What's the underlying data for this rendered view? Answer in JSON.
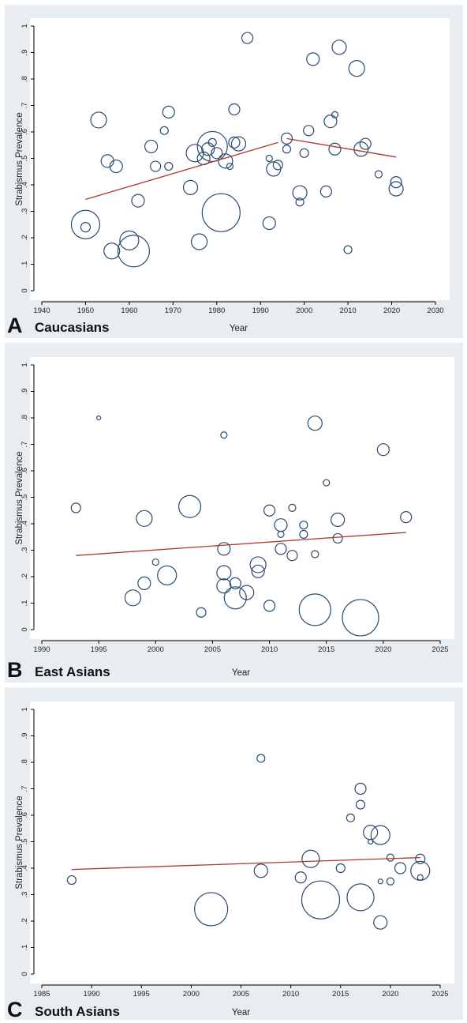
{
  "chart_data": [
    {
      "type": "scatter",
      "panel_letter": "A",
      "group": "Caucasians",
      "xlabel": "Year",
      "ylabel": "Strabismus Prevalence",
      "xlim": [
        1940,
        2030
      ],
      "ylim": [
        0,
        1
      ],
      "x_ticks": [
        1940,
        1950,
        1960,
        1970,
        1980,
        1990,
        2000,
        2010,
        2020,
        2030
      ],
      "y_ticks": [
        "0",
        ".1",
        ".2",
        ".3",
        ".4",
        ".5",
        ".6",
        ".7",
        ".8",
        ".9",
        "1"
      ],
      "grid": false,
      "bubble_size": "study weight (relative)",
      "points": [
        {
          "x": 1950,
          "y": 0.25,
          "w": 18
        },
        {
          "x": 1950,
          "y": 0.24,
          "w": 6
        },
        {
          "x": 1953,
          "y": 0.645,
          "w": 10
        },
        {
          "x": 1955,
          "y": 0.49,
          "w": 8
        },
        {
          "x": 1956,
          "y": 0.15,
          "w": 10
        },
        {
          "x": 1957,
          "y": 0.47,
          "w": 8
        },
        {
          "x": 1960,
          "y": 0.19,
          "w": 12
        },
        {
          "x": 1961,
          "y": 0.15,
          "w": 20
        },
        {
          "x": 1962,
          "y": 0.34,
          "w": 8
        },
        {
          "x": 1965,
          "y": 0.545,
          "w": 8
        },
        {
          "x": 1966,
          "y": 0.47,
          "w": 6.5
        },
        {
          "x": 1968,
          "y": 0.605,
          "w": 5
        },
        {
          "x": 1969,
          "y": 0.675,
          "w": 7.5
        },
        {
          "x": 1969,
          "y": 0.47,
          "w": 5
        },
        {
          "x": 1974,
          "y": 0.39,
          "w": 9
        },
        {
          "x": 1975,
          "y": 0.52,
          "w": 11
        },
        {
          "x": 1976,
          "y": 0.185,
          "w": 10
        },
        {
          "x": 1977,
          "y": 0.5,
          "w": 8
        },
        {
          "x": 1978,
          "y": 0.535,
          "w": 8
        },
        {
          "x": 1979,
          "y": 0.545,
          "w": 19
        },
        {
          "x": 1979,
          "y": 0.56,
          "w": 5
        },
        {
          "x": 1980,
          "y": 0.52,
          "w": 7
        },
        {
          "x": 1981,
          "y": 0.295,
          "w": 24
        },
        {
          "x": 1982,
          "y": 0.49,
          "w": 9
        },
        {
          "x": 1983,
          "y": 0.47,
          "w": 4
        },
        {
          "x": 1984,
          "y": 0.685,
          "w": 7
        },
        {
          "x": 1984,
          "y": 0.56,
          "w": 7
        },
        {
          "x": 1985,
          "y": 0.555,
          "w": 9
        },
        {
          "x": 1987,
          "y": 0.955,
          "w": 7
        },
        {
          "x": 1992,
          "y": 0.255,
          "w": 8
        },
        {
          "x": 1992,
          "y": 0.5,
          "w": 4
        },
        {
          "x": 1993,
          "y": 0.46,
          "w": 9
        },
        {
          "x": 1994,
          "y": 0.475,
          "w": 6
        },
        {
          "x": 1996,
          "y": 0.575,
          "w": 7
        },
        {
          "x": 1996,
          "y": 0.535,
          "w": 5
        },
        {
          "x": 1999,
          "y": 0.37,
          "w": 9
        },
        {
          "x": 1999,
          "y": 0.335,
          "w": 5
        },
        {
          "x": 2000,
          "y": 0.52,
          "w": 5.5
        },
        {
          "x": 2001,
          "y": 0.605,
          "w": 6.5
        },
        {
          "x": 2002,
          "y": 0.875,
          "w": 8
        },
        {
          "x": 2005,
          "y": 0.375,
          "w": 7
        },
        {
          "x": 2006,
          "y": 0.64,
          "w": 8
        },
        {
          "x": 2007,
          "y": 0.535,
          "w": 7.5
        },
        {
          "x": 2007,
          "y": 0.665,
          "w": 4
        },
        {
          "x": 2008,
          "y": 0.92,
          "w": 9
        },
        {
          "x": 2010,
          "y": 0.155,
          "w": 5
        },
        {
          "x": 2012,
          "y": 0.84,
          "w": 10
        },
        {
          "x": 2013,
          "y": 0.535,
          "w": 9
        },
        {
          "x": 2014,
          "y": 0.555,
          "w": 7
        },
        {
          "x": 2017,
          "y": 0.44,
          "w": 4.5
        },
        {
          "x": 2021,
          "y": 0.41,
          "w": 7
        },
        {
          "x": 2021,
          "y": 0.385,
          "w": 9
        }
      ],
      "fit_lines": [
        {
          "x": [
            1950,
            1994
          ],
          "y": [
            0.345,
            0.56
          ]
        },
        {
          "x": [
            1996,
            2021
          ],
          "y": [
            0.575,
            0.505
          ]
        }
      ]
    },
    {
      "type": "scatter",
      "panel_letter": "B",
      "group": "East Asians",
      "xlabel": "Year",
      "ylabel": "Strabismus Prevalence",
      "xlim": [
        1990,
        2025
      ],
      "ylim": [
        0,
        1
      ],
      "x_ticks": [
        1990,
        1995,
        2000,
        2005,
        2010,
        2015,
        2020,
        2025
      ],
      "y_ticks": [
        "0",
        ".1",
        ".2",
        ".3",
        ".4",
        ".5",
        ".6",
        ".7",
        ".8",
        ".9",
        "1"
      ],
      "grid": false,
      "bubble_size": "study weight (relative)",
      "points": [
        {
          "x": 1993,
          "y": 0.46,
          "w": 6
        },
        {
          "x": 1995,
          "y": 0.8,
          "w": 2.5
        },
        {
          "x": 1998,
          "y": 0.12,
          "w": 10
        },
        {
          "x": 1999,
          "y": 0.42,
          "w": 10
        },
        {
          "x": 1999,
          "y": 0.175,
          "w": 8
        },
        {
          "x": 2000,
          "y": 0.255,
          "w": 4
        },
        {
          "x": 2001,
          "y": 0.205,
          "w": 12
        },
        {
          "x": 2003,
          "y": 0.465,
          "w": 14
        },
        {
          "x": 2004,
          "y": 0.065,
          "w": 6
        },
        {
          "x": 2006,
          "y": 0.735,
          "w": 4
        },
        {
          "x": 2006,
          "y": 0.305,
          "w": 8
        },
        {
          "x": 2006,
          "y": 0.215,
          "w": 9
        },
        {
          "x": 2006,
          "y": 0.165,
          "w": 9
        },
        {
          "x": 2007,
          "y": 0.175,
          "w": 7
        },
        {
          "x": 2007,
          "y": 0.12,
          "w": 14
        },
        {
          "x": 2008,
          "y": 0.14,
          "w": 9
        },
        {
          "x": 2009,
          "y": 0.245,
          "w": 10
        },
        {
          "x": 2009,
          "y": 0.22,
          "w": 8
        },
        {
          "x": 2010,
          "y": 0.45,
          "w": 7
        },
        {
          "x": 2010,
          "y": 0.09,
          "w": 7
        },
        {
          "x": 2011,
          "y": 0.395,
          "w": 8
        },
        {
          "x": 2011,
          "y": 0.36,
          "w": 4
        },
        {
          "x": 2011,
          "y": 0.305,
          "w": 7
        },
        {
          "x": 2012,
          "y": 0.46,
          "w": 4.5
        },
        {
          "x": 2012,
          "y": 0.28,
          "w": 6.5
        },
        {
          "x": 2013,
          "y": 0.395,
          "w": 5
        },
        {
          "x": 2013,
          "y": 0.36,
          "w": 5
        },
        {
          "x": 2014,
          "y": 0.78,
          "w": 9
        },
        {
          "x": 2014,
          "y": 0.285,
          "w": 4.5
        },
        {
          "x": 2014,
          "y": 0.075,
          "w": 20
        },
        {
          "x": 2015,
          "y": 0.555,
          "w": 4
        },
        {
          "x": 2016,
          "y": 0.415,
          "w": 8.5
        },
        {
          "x": 2016,
          "y": 0.345,
          "w": 6
        },
        {
          "x": 2018,
          "y": 0.045,
          "w": 23
        },
        {
          "x": 2020,
          "y": 0.68,
          "w": 7.5
        },
        {
          "x": 2022,
          "y": 0.425,
          "w": 7
        }
      ],
      "fit_lines": [
        {
          "x": [
            1993,
            2022
          ],
          "y": [
            0.28,
            0.367
          ]
        }
      ]
    },
    {
      "type": "scatter",
      "panel_letter": "C",
      "group": "South Asians",
      "xlabel": "Year",
      "ylabel": "Strabismus Prevalence",
      "xlim": [
        1985,
        2025
      ],
      "ylim": [
        0,
        1
      ],
      "x_ticks": [
        1985,
        1990,
        1995,
        2000,
        2005,
        2010,
        2015,
        2020,
        2025
      ],
      "y_ticks": [
        "0",
        ".1",
        ".2",
        ".3",
        ".4",
        ".5",
        ".6",
        ".7",
        ".8",
        ".9",
        "1"
      ],
      "grid": false,
      "bubble_size": "study weight (relative)",
      "points": [
        {
          "x": 1988,
          "y": 0.355,
          "w": 5.5
        },
        {
          "x": 2002,
          "y": 0.245,
          "w": 21
        },
        {
          "x": 2007,
          "y": 0.815,
          "w": 5
        },
        {
          "x": 2007,
          "y": 0.39,
          "w": 8.5
        },
        {
          "x": 2011,
          "y": 0.365,
          "w": 7
        },
        {
          "x": 2012,
          "y": 0.435,
          "w": 11
        },
        {
          "x": 2013,
          "y": 0.28,
          "w": 24
        },
        {
          "x": 2015,
          "y": 0.4,
          "w": 5.5
        },
        {
          "x": 2016,
          "y": 0.59,
          "w": 5
        },
        {
          "x": 2017,
          "y": 0.7,
          "w": 7
        },
        {
          "x": 2017,
          "y": 0.64,
          "w": 5.5
        },
        {
          "x": 2017,
          "y": 0.29,
          "w": 17
        },
        {
          "x": 2018,
          "y": 0.535,
          "w": 9
        },
        {
          "x": 2018,
          "y": 0.5,
          "w": 3
        },
        {
          "x": 2019,
          "y": 0.525,
          "w": 12
        },
        {
          "x": 2019,
          "y": 0.35,
          "w": 3
        },
        {
          "x": 2019,
          "y": 0.195,
          "w": 8.5
        },
        {
          "x": 2020,
          "y": 0.44,
          "w": 4.5
        },
        {
          "x": 2020,
          "y": 0.35,
          "w": 4.5
        },
        {
          "x": 2021,
          "y": 0.4,
          "w": 7
        },
        {
          "x": 2023,
          "y": 0.435,
          "w": 6
        },
        {
          "x": 2023,
          "y": 0.39,
          "w": 12
        },
        {
          "x": 2023,
          "y": 0.365,
          "w": 3.5
        }
      ],
      "fit_lines": [
        {
          "x": [
            1988,
            2023
          ],
          "y": [
            0.395,
            0.44
          ]
        }
      ]
    }
  ]
}
